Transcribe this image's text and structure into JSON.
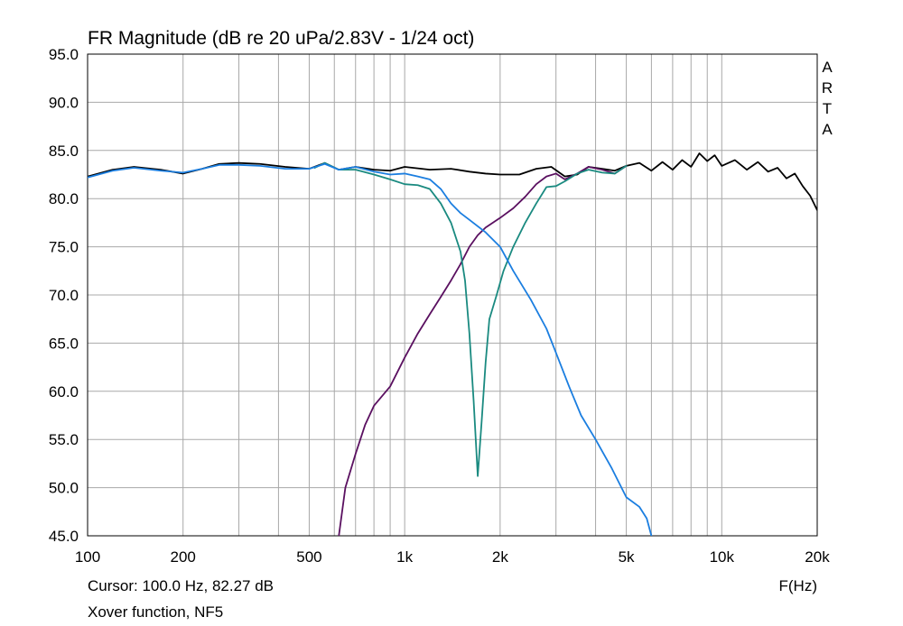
{
  "chart_data": {
    "type": "line",
    "title": "FR Magnitude (dB re 20 uPa/2.83V - 1/24 oct)",
    "xlabel": "F(Hz)",
    "ylabel": "",
    "x_scale": "log",
    "xlim": [
      100,
      20000
    ],
    "ylim": [
      45,
      95
    ],
    "grid": true,
    "x_ticks": [
      {
        "value": 100,
        "label": "100"
      },
      {
        "value": 200,
        "label": "200"
      },
      {
        "value": 500,
        "label": "500"
      },
      {
        "value": 1000,
        "label": "1k"
      },
      {
        "value": 2000,
        "label": "2k"
      },
      {
        "value": 5000,
        "label": "5k"
      },
      {
        "value": 10000,
        "label": "10k"
      },
      {
        "value": 20000,
        "label": "20k"
      }
    ],
    "y_ticks": [
      {
        "value": 95,
        "label": "95.0"
      },
      {
        "value": 90,
        "label": "90.0"
      },
      {
        "value": 85,
        "label": "85.0"
      },
      {
        "value": 80,
        "label": "80.0"
      },
      {
        "value": 75,
        "label": "75.0"
      },
      {
        "value": 70,
        "label": "70.0"
      },
      {
        "value": 65,
        "label": "65.0"
      },
      {
        "value": 60,
        "label": "60.0"
      },
      {
        "value": 55,
        "label": "55.0"
      },
      {
        "value": 50,
        "label": "50.0"
      },
      {
        "value": 45,
        "label": "45.0"
      }
    ],
    "series": [
      {
        "color": "#000000",
        "points": [
          [
            100,
            82.3
          ],
          [
            120,
            83.0
          ],
          [
            140,
            83.3
          ],
          [
            170,
            83.0
          ],
          [
            200,
            82.6
          ],
          [
            230,
            83.1
          ],
          [
            260,
            83.6
          ],
          [
            300,
            83.7
          ],
          [
            350,
            83.6
          ],
          [
            420,
            83.3
          ],
          [
            500,
            83.1
          ],
          [
            560,
            83.7
          ],
          [
            620,
            83.0
          ],
          [
            700,
            83.3
          ],
          [
            800,
            83.0
          ],
          [
            900,
            82.9
          ],
          [
            1000,
            83.3
          ],
          [
            1200,
            83.0
          ],
          [
            1400,
            83.1
          ],
          [
            1600,
            82.8
          ],
          [
            1800,
            82.6
          ],
          [
            2000,
            82.5
          ],
          [
            2300,
            82.5
          ],
          [
            2600,
            83.1
          ],
          [
            2900,
            83.3
          ],
          [
            3200,
            82.3
          ],
          [
            3500,
            82.5
          ],
          [
            3800,
            83.3
          ],
          [
            4200,
            83.1
          ],
          [
            4600,
            82.9
          ],
          [
            5000,
            83.4
          ],
          [
            5500,
            83.7
          ],
          [
            6000,
            82.9
          ],
          [
            6500,
            83.8
          ],
          [
            7000,
            83.0
          ],
          [
            7500,
            84.0
          ],
          [
            8000,
            83.3
          ],
          [
            8500,
            84.7
          ],
          [
            9000,
            83.9
          ],
          [
            9500,
            84.5
          ],
          [
            10000,
            83.4
          ],
          [
            11000,
            84.0
          ],
          [
            12000,
            83.0
          ],
          [
            13000,
            83.8
          ],
          [
            14000,
            82.8
          ],
          [
            15000,
            83.2
          ],
          [
            16000,
            82.1
          ],
          [
            17000,
            82.6
          ],
          [
            18000,
            81.3
          ],
          [
            19000,
            80.3
          ],
          [
            20000,
            78.8
          ]
        ]
      },
      {
        "color": "#5a1060",
        "points": [
          [
            620,
            45.0
          ],
          [
            650,
            50.0
          ],
          [
            700,
            53.5
          ],
          [
            750,
            56.5
          ],
          [
            800,
            58.5
          ],
          [
            900,
            60.5
          ],
          [
            1000,
            63.5
          ],
          [
            1100,
            66.0
          ],
          [
            1200,
            68.0
          ],
          [
            1300,
            69.8
          ],
          [
            1400,
            71.5
          ],
          [
            1500,
            73.2
          ],
          [
            1600,
            75.0
          ],
          [
            1700,
            76.2
          ],
          [
            1800,
            77.0
          ],
          [
            2000,
            78.0
          ],
          [
            2200,
            79.0
          ],
          [
            2400,
            80.2
          ],
          [
            2600,
            81.5
          ],
          [
            2800,
            82.3
          ],
          [
            3000,
            82.6
          ],
          [
            3200,
            82.0
          ],
          [
            3500,
            82.6
          ],
          [
            3800,
            83.3
          ],
          [
            4200,
            83.0
          ],
          [
            4600,
            82.6
          ],
          [
            5000,
            83.4
          ]
        ]
      },
      {
        "color": "#1a8a80",
        "points": [
          [
            520,
            83.2
          ],
          [
            560,
            83.7
          ],
          [
            620,
            83.0
          ],
          [
            700,
            83.0
          ],
          [
            800,
            82.5
          ],
          [
            900,
            82.0
          ],
          [
            1000,
            81.5
          ],
          [
            1100,
            81.4
          ],
          [
            1200,
            81.0
          ],
          [
            1300,
            79.5
          ],
          [
            1400,
            77.5
          ],
          [
            1500,
            74.5
          ],
          [
            1550,
            71.5
          ],
          [
            1600,
            66.0
          ],
          [
            1650,
            59.0
          ],
          [
            1700,
            51.2
          ],
          [
            1750,
            57.0
          ],
          [
            1800,
            63.0
          ],
          [
            1850,
            67.5
          ],
          [
            1950,
            70.0
          ],
          [
            2050,
            72.5
          ],
          [
            2200,
            75.0
          ],
          [
            2400,
            77.5
          ],
          [
            2600,
            79.5
          ],
          [
            2800,
            81.2
          ],
          [
            3000,
            81.3
          ],
          [
            3200,
            81.8
          ],
          [
            3500,
            82.6
          ],
          [
            3800,
            83.0
          ],
          [
            4200,
            82.7
          ],
          [
            4600,
            82.6
          ],
          [
            5000,
            83.4
          ]
        ]
      },
      {
        "color": "#1b7ee0",
        "points": [
          [
            100,
            82.2
          ],
          [
            120,
            82.9
          ],
          [
            140,
            83.2
          ],
          [
            170,
            82.9
          ],
          [
            200,
            82.7
          ],
          [
            230,
            83.1
          ],
          [
            260,
            83.5
          ],
          [
            300,
            83.5
          ],
          [
            350,
            83.4
          ],
          [
            420,
            83.1
          ],
          [
            500,
            83.1
          ],
          [
            560,
            83.6
          ],
          [
            620,
            83.0
          ],
          [
            700,
            83.3
          ],
          [
            800,
            82.8
          ],
          [
            900,
            82.5
          ],
          [
            1000,
            82.6
          ],
          [
            1100,
            82.3
          ],
          [
            1200,
            82.0
          ],
          [
            1300,
            81.0
          ],
          [
            1400,
            79.5
          ],
          [
            1500,
            78.5
          ],
          [
            1600,
            77.8
          ],
          [
            1800,
            76.5
          ],
          [
            2000,
            75.0
          ],
          [
            2200,
            72.5
          ],
          [
            2500,
            69.5
          ],
          [
            2800,
            66.5
          ],
          [
            3000,
            64.0
          ],
          [
            3300,
            60.5
          ],
          [
            3600,
            57.5
          ],
          [
            4000,
            55.0
          ],
          [
            4500,
            52.0
          ],
          [
            5000,
            49.0
          ],
          [
            5500,
            48.0
          ],
          [
            5800,
            46.8
          ],
          [
            6000,
            45.0
          ]
        ]
      }
    ],
    "annotations": [
      "A",
      "R",
      "T",
      "A"
    ],
    "cursor_text": "Cursor: 100.0 Hz, 82.27 dB",
    "footer_text": "Xover function, NF5"
  }
}
